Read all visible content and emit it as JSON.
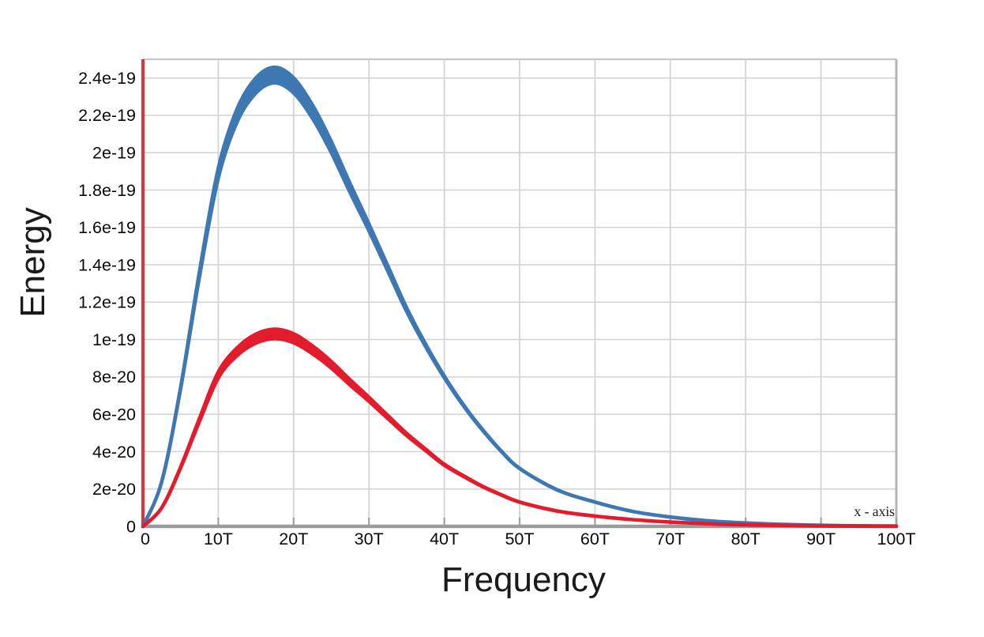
{
  "chart_data": {
    "type": "line",
    "title": "",
    "xlabel": "Frequency",
    "ylabel": "Energy",
    "annotation": "x - axis",
    "xlim": [
      0,
      100
    ],
    "ylim": [
      0,
      2.5e-19
    ],
    "grid": true,
    "legend": "none",
    "x_ticks": [
      {
        "v": 0,
        "label": "0"
      },
      {
        "v": 10,
        "label": "10T"
      },
      {
        "v": 20,
        "label": "20T"
      },
      {
        "v": 30,
        "label": "30T"
      },
      {
        "v": 40,
        "label": "40T"
      },
      {
        "v": 50,
        "label": "50T"
      },
      {
        "v": 60,
        "label": "60T"
      },
      {
        "v": 70,
        "label": "70T"
      },
      {
        "v": 80,
        "label": "80T"
      },
      {
        "v": 90,
        "label": "90T"
      },
      {
        "v": 100,
        "label": "100T"
      }
    ],
    "y_ticks": [
      {
        "v": 0,
        "label": "0"
      },
      {
        "v": 2e-20,
        "label": "2e-20"
      },
      {
        "v": 4e-20,
        "label": "4e-20"
      },
      {
        "v": 6e-20,
        "label": "6e-20"
      },
      {
        "v": 8e-20,
        "label": "8e-20"
      },
      {
        "v": 1e-19,
        "label": "1e-19"
      },
      {
        "v": 1.2e-19,
        "label": "1.2e-19"
      },
      {
        "v": 1.4e-19,
        "label": "1.4e-19"
      },
      {
        "v": 1.6e-19,
        "label": "1.6e-19"
      },
      {
        "v": 1.8e-19,
        "label": "1.8e-19"
      },
      {
        "v": 2e-19,
        "label": "2e-19"
      },
      {
        "v": 2.2e-19,
        "label": "2.2e-19"
      },
      {
        "v": 2.4e-19,
        "label": "2.4e-19"
      }
    ],
    "x": [
      0,
      2.5,
      5,
      7.5,
      10,
      12.5,
      15,
      17.5,
      20,
      22.5,
      25,
      27.5,
      30,
      32.5,
      35,
      37.5,
      40,
      42.5,
      45,
      47.5,
      50,
      55,
      60,
      65,
      70,
      75,
      80,
      85,
      90,
      95,
      100
    ],
    "series": [
      {
        "name": "blue curve (higher energy band)",
        "color": "#3e78b2",
        "peak": {
          "x": 17.5,
          "y": 2.415e-19
        },
        "y": [
          0,
          2.4e-20,
          7.4e-20,
          1.35e-19,
          1.89e-19,
          2.2e-19,
          2.36e-19,
          2.415e-19,
          2.36e-19,
          2.22e-19,
          2.03e-19,
          1.81e-19,
          1.6e-19,
          1.38e-19,
          1.16e-19,
          9.7e-20,
          8e-20,
          6.5e-20,
          5.2e-20,
          4.05e-20,
          3.1e-20,
          1.95e-20,
          1.3e-20,
          8e-21,
          5e-21,
          3e-21,
          1.8e-21,
          1e-21,
          5.5e-22,
          3e-22,
          1.5e-22
        ],
        "band": [
          0,
          4.1e-23,
          3.9e-22,
          1.31e-21,
          2.57e-21,
          3.49e-21,
          4.01e-21,
          4.2e-21,
          4.01e-21,
          3.55e-21,
          2.97e-21,
          2.36e-21,
          1.84e-21,
          1.37e-21,
          9.7e-22,
          6.8e-22,
          4.6e-22,
          3e-22,
          2e-22,
          1.2e-22,
          7e-23,
          3e-23,
          1.2e-23,
          5e-24,
          0,
          0,
          0,
          0,
          0,
          0,
          0
        ]
      },
      {
        "name": "red curve (lower energy band)",
        "color": "#e31c2d",
        "peak": {
          "x": 17.5,
          "y": 1.03e-19
        },
        "y": [
          0,
          1e-20,
          3.15e-20,
          5.7e-20,
          8.1e-20,
          9.35e-20,
          1.005e-19,
          1.03e-19,
          1.007e-19,
          9.45e-20,
          8.65e-20,
          7.7e-20,
          6.8e-20,
          5.85e-20,
          4.92e-20,
          4.1e-20,
          3.3e-20,
          2.7e-20,
          2.15e-20,
          1.7e-20,
          1.3e-20,
          8.2e-21,
          5.5e-21,
          3.6e-21,
          2.3e-21,
          1.4e-21,
          8e-22,
          5e-22,
          2.6e-22,
          1.3e-22,
          6e-23
        ],
        "band": [
          0,
          2.4e-23,
          2.3e-22,
          7.7e-22,
          1.55e-21,
          2.06e-21,
          2.38e-21,
          2.5e-21,
          2.39e-21,
          2.1e-21,
          1.76e-21,
          1.4e-21,
          1.09e-21,
          8.1e-22,
          5.7e-22,
          4e-22,
          2.6e-22,
          1.7e-22,
          1.1e-22,
          6.8e-23,
          4e-23,
          1.6e-23,
          7e-24,
          0,
          0,
          0,
          0,
          0,
          0,
          0,
          0
        ]
      }
    ],
    "colors": {
      "grid": "#d4d4d4",
      "top_border": "#c6c6c6",
      "right_border": "#b4b4b4",
      "x_axis_line": "#9b9b9b",
      "x_axis_tick": "#a0a0a0",
      "y_axis_line": "#d6383e",
      "tick_text": "#0a0a0a"
    }
  }
}
